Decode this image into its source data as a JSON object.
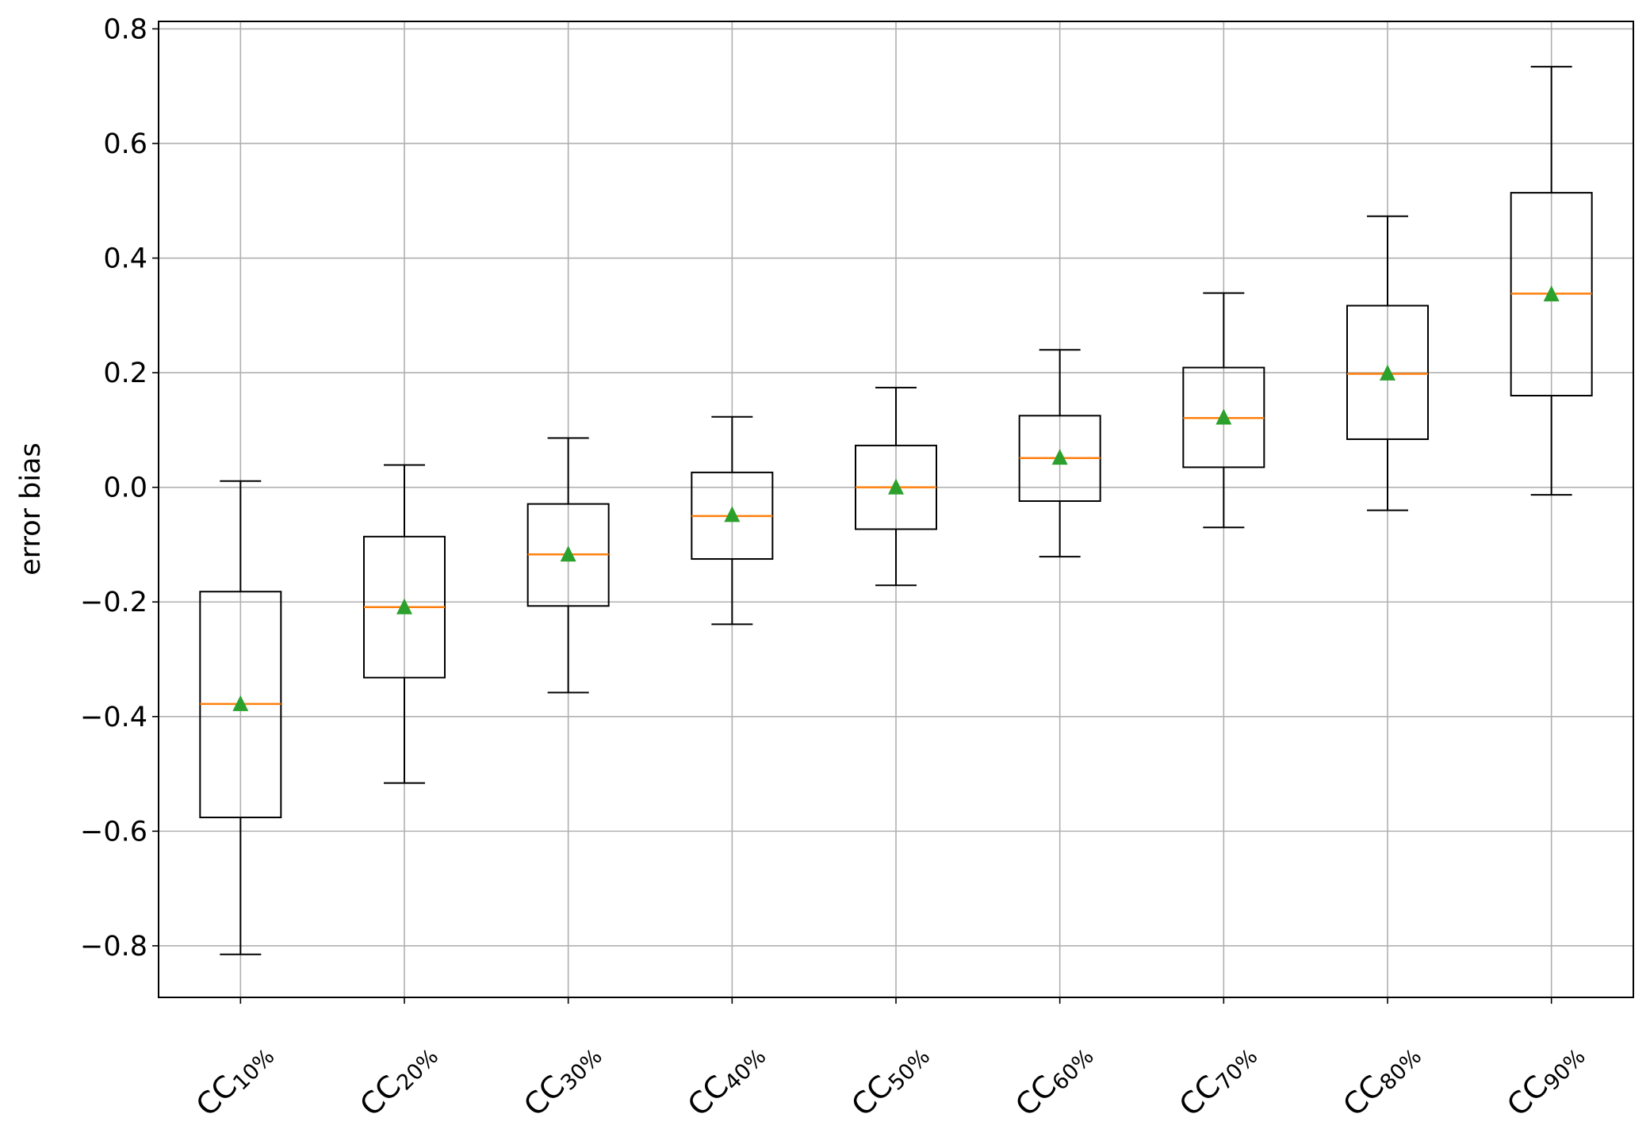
{
  "chart_data": {
    "type": "box",
    "title": "",
    "xlabel": "",
    "ylabel": "error bias",
    "ylim": [
      -0.89,
      0.813
    ],
    "xlim": [
      0.5,
      9.5
    ],
    "grid": true,
    "yticks": [
      -0.8,
      -0.6,
      -0.4,
      -0.2,
      0.0,
      0.2,
      0.4,
      0.6,
      0.8
    ],
    "ytick_labels": [
      "−0.8",
      "−0.6",
      "−0.4",
      "−0.2",
      "0.0",
      "0.2",
      "0.4",
      "0.6",
      "0.8"
    ],
    "categories": [
      {
        "base": "CC",
        "sub": "10%"
      },
      {
        "base": "CC",
        "sub": "20%"
      },
      {
        "base": "CC",
        "sub": "30%"
      },
      {
        "base": "CC",
        "sub": "40%"
      },
      {
        "base": "CC",
        "sub": "50%"
      },
      {
        "base": "CC",
        "sub": "60%"
      },
      {
        "base": "CC",
        "sub": "70%"
      },
      {
        "base": "CC",
        "sub": "80%"
      },
      {
        "base": "CC",
        "sub": "90%"
      }
    ],
    "boxes": [
      {
        "whislo": -0.815,
        "q1": -0.576,
        "med": -0.378,
        "q3": -0.182,
        "whishi": 0.011,
        "mean": -0.378
      },
      {
        "whislo": -0.516,
        "q1": -0.332,
        "med": -0.209,
        "q3": -0.086,
        "whishi": 0.039,
        "mean": -0.209
      },
      {
        "whislo": -0.358,
        "q1": -0.207,
        "med": -0.117,
        "q3": -0.029,
        "whishi": 0.086,
        "mean": -0.117
      },
      {
        "whislo": -0.239,
        "q1": -0.125,
        "med": -0.05,
        "q3": 0.026,
        "whishi": 0.123,
        "mean": -0.048
      },
      {
        "whislo": -0.171,
        "q1": -0.073,
        "med": 0.0,
        "q3": 0.073,
        "whishi": 0.174,
        "mean": 0.0
      },
      {
        "whislo": -0.121,
        "q1": -0.024,
        "med": 0.051,
        "q3": 0.125,
        "whishi": 0.24,
        "mean": 0.052
      },
      {
        "whislo": -0.07,
        "q1": 0.035,
        "med": 0.121,
        "q3": 0.209,
        "whishi": 0.339,
        "mean": 0.122
      },
      {
        "whislo": -0.04,
        "q1": 0.084,
        "med": 0.198,
        "q3": 0.317,
        "whishi": 0.473,
        "mean": 0.199
      },
      {
        "whislo": -0.013,
        "q1": 0.16,
        "med": 0.338,
        "q3": 0.514,
        "whishi": 0.734,
        "mean": 0.337
      }
    ],
    "colors": {
      "box": "#000000",
      "median": "#ff7f0e",
      "mean": "#2ca02c",
      "grid": "#b0b0b0"
    }
  }
}
